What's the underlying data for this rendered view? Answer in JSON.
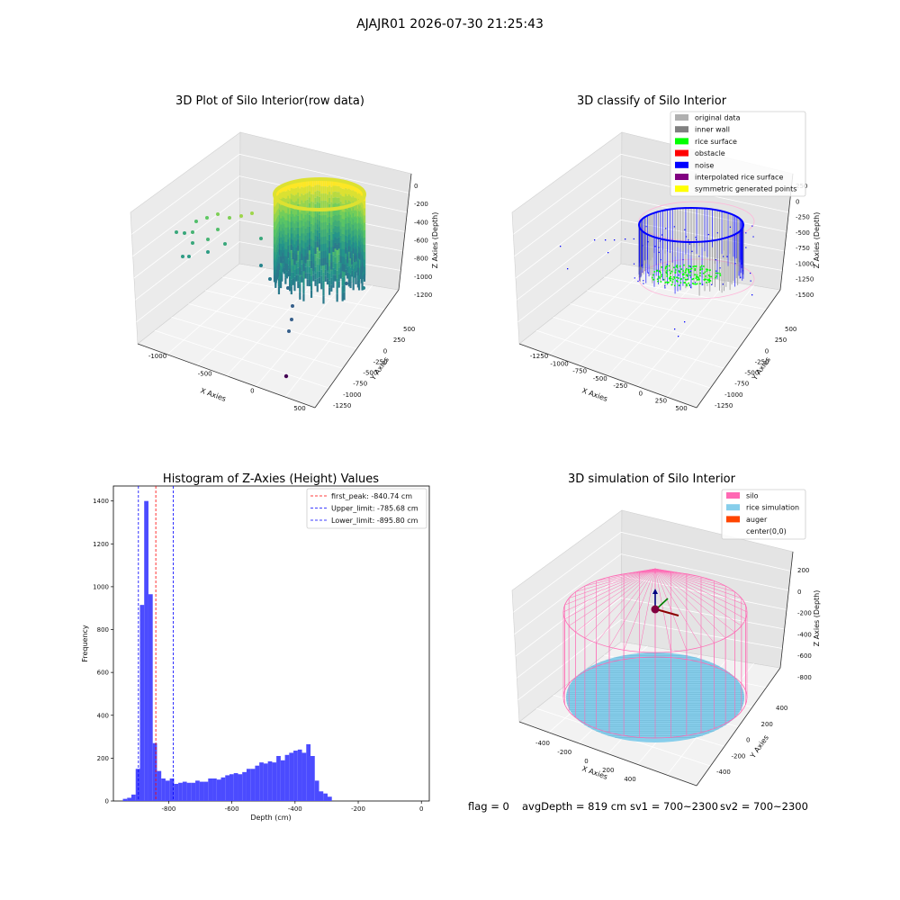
{
  "suptitle": "AJAJR01 2026-07-30 21:25:43",
  "footer": {
    "flag": "flag = 0",
    "avg_depth": "avgDepth = 819 cm",
    "sv1": "sv1 = 700~2300",
    "sv2": "sv2 = 700~2300"
  },
  "colors": {
    "histogram_bar": "#4b4bff",
    "first_peak_line": "#ff0000",
    "limit_lines": "#0000ff",
    "silo": "#ff69b4",
    "rice_simulation": "#87ceeb",
    "auger": "#ff4500",
    "rice_surface": "#00ff00",
    "noise": "#0000ff",
    "obstacle": "#ff0000",
    "inner_wall": "#808080",
    "original_data": "#b0b0b0",
    "interpolated": "#800080",
    "symmetric": "#ffff00"
  },
  "chart_data": [
    {
      "type": "scatter3d",
      "title": "3D Plot of Silo Interior(row data)",
      "xlabel": "X Axies",
      "ylabel": "Y Axies",
      "zlabel": "Z Axies (Depth)",
      "x_ticks": [
        "-1000",
        "-500",
        "0",
        "500"
      ],
      "y_ticks": [
        "500",
        "250",
        "0",
        "-250",
        "-500",
        "-750",
        "-1000",
        "-1250"
      ],
      "z_ticks": [
        "0",
        "-200",
        "-400",
        "-600",
        "-800",
        "-1000",
        "-1200"
      ],
      "colormap": "viridis"
    },
    {
      "type": "scatter3d",
      "title": "3D classify of Silo Interior",
      "xlabel": "X Axies",
      "ylabel": "Y Axies",
      "zlabel": "Z Axies (Depth)",
      "x_ticks": [
        "-1250",
        "-1000",
        "-750",
        "-500",
        "-250",
        "0",
        "250",
        "500"
      ],
      "y_ticks": [
        "500",
        "250",
        "0",
        "-250",
        "-500",
        "-750",
        "-1000",
        "-1250"
      ],
      "z_ticks": [
        "250",
        "0",
        "-250",
        "-500",
        "-750",
        "-1000",
        "-1250",
        "-1500"
      ],
      "legend": [
        {
          "label": "original data",
          "color": "#b0b0b0"
        },
        {
          "label": "inner wall",
          "color": "#808080"
        },
        {
          "label": "rice surface",
          "color": "#00ff00"
        },
        {
          "label": "obstacle",
          "color": "#ff0000"
        },
        {
          "label": "noise",
          "color": "#0000ff"
        },
        {
          "label": "interpolated rice surface",
          "color": "#800080"
        },
        {
          "label": "symmetric generated points",
          "color": "#ffff00"
        }
      ]
    },
    {
      "type": "bar",
      "title": "Histogram of Z-Axies (Height) Values",
      "xlabel": "Depth (cm)",
      "ylabel": "Frequency",
      "xlim": [
        -975,
        25
      ],
      "ylim": [
        0,
        1470
      ],
      "x_ticks": [
        -800,
        -600,
        -400,
        -200,
        0
      ],
      "y_ticks": [
        0,
        200,
        400,
        600,
        800,
        1000,
        1200,
        1400
      ],
      "bin_width": 13.5,
      "bins_start": -945,
      "values": [
        10,
        15,
        30,
        150,
        915,
        1400,
        965,
        270,
        140,
        105,
        95,
        105,
        80,
        85,
        90,
        85,
        85,
        95,
        90,
        90,
        105,
        105,
        100,
        110,
        120,
        125,
        130,
        125,
        135,
        150,
        150,
        165,
        180,
        175,
        185,
        180,
        210,
        190,
        215,
        225,
        235,
        240,
        225,
        265,
        210,
        95,
        45,
        35,
        20
      ],
      "vlines": [
        {
          "label": "first_peak: -840.74 cm",
          "x": -840.74,
          "color": "#ff0000"
        },
        {
          "label": "Upper_limit: -785.68 cm",
          "x": -785.68,
          "color": "#0000ff"
        },
        {
          "label": "Lower_limit: -895.80 cm",
          "x": -895.8,
          "color": "#0000ff"
        }
      ]
    },
    {
      "type": "surface3d",
      "title": "3D simulation of Silo Interior",
      "xlabel": "X Axies",
      "ylabel": "Y Axies",
      "zlabel": "Z Axies (Depth)",
      "x_ticks": [
        "-400",
        "-200",
        "0",
        "200",
        "400"
      ],
      "y_ticks": [
        "400",
        "200",
        "0",
        "-200",
        "-400"
      ],
      "z_ticks": [
        "200",
        "0",
        "-200",
        "-400",
        "-600",
        "-800"
      ],
      "legend": [
        {
          "label": "silo",
          "color": "#ff69b4"
        },
        {
          "label": "rice simulation",
          "color": "#87ceeb"
        },
        {
          "label": "auger",
          "color": "#ff4500"
        },
        {
          "label": "center(0,0)",
          "color": ""
        }
      ]
    }
  ]
}
